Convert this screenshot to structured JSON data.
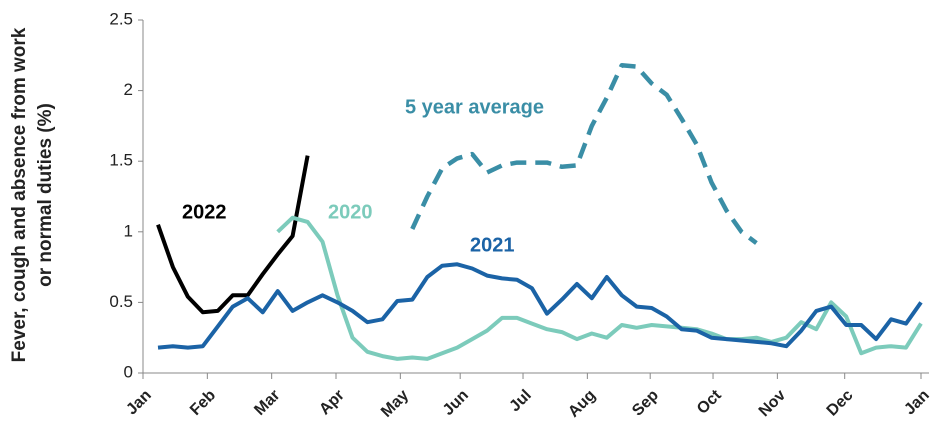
{
  "chart_data": {
    "type": "line",
    "y_label": [
      "Fever, cough and absence from work",
      "or normal duties (%)"
    ],
    "x": [
      1,
      2,
      3,
      4,
      5,
      6,
      7,
      8,
      9,
      10,
      11,
      12,
      13,
      14,
      15,
      16,
      17,
      18,
      19,
      20,
      21,
      22,
      23,
      24,
      25,
      26,
      27,
      28,
      29,
      30,
      31,
      32,
      33,
      34,
      35,
      36,
      37,
      38,
      39,
      40,
      41,
      42,
      43,
      44,
      45,
      46,
      47,
      48,
      49,
      50,
      51,
      52
    ],
    "xlim": [
      0,
      52
    ],
    "xticks": [
      {
        "value": 0,
        "label": "Jan"
      },
      {
        "value": 4.3,
        "label": "Feb"
      },
      {
        "value": 8.6,
        "label": "Mar"
      },
      {
        "value": 12.9,
        "label": "Apr"
      },
      {
        "value": 17.2,
        "label": "May"
      },
      {
        "value": 21.2,
        "label": "Jun"
      },
      {
        "value": 25.4,
        "label": "Jul"
      },
      {
        "value": 29.7,
        "label": "Aug"
      },
      {
        "value": 33.9,
        "label": "Sep"
      },
      {
        "value": 38.1,
        "label": "Oct"
      },
      {
        "value": 42.4,
        "label": "Nov"
      },
      {
        "value": 46.9,
        "label": "Dec"
      },
      {
        "value": 52,
        "label": "Jan"
      }
    ],
    "ylim": [
      0,
      2.5
    ],
    "yticks": [
      0,
      0.5,
      1,
      1.5,
      2,
      2.5
    ],
    "grid": false,
    "series": [
      {
        "name": "2022",
        "color": "#000000",
        "dashed": false,
        "values": [
          1.05,
          0.75,
          0.54,
          0.43,
          0.44,
          0.55,
          0.55,
          0.7,
          0.84,
          0.97,
          1.54,
          null,
          null,
          null,
          null,
          null,
          null,
          null,
          null,
          null,
          null,
          null,
          null,
          null,
          null,
          null,
          null,
          null,
          null,
          null,
          null,
          null,
          null,
          null,
          null,
          null,
          null,
          null,
          null,
          null,
          null,
          null,
          null,
          null,
          null,
          null,
          null,
          null,
          null,
          null,
          null,
          null
        ]
      },
      {
        "name": "2020",
        "color": "#7ccbbb",
        "dashed": false,
        "values": [
          null,
          null,
          null,
          null,
          null,
          null,
          null,
          null,
          1.0,
          1.1,
          1.07,
          0.93,
          0.55,
          0.25,
          0.15,
          0.12,
          0.1,
          0.11,
          0.1,
          0.14,
          0.18,
          0.24,
          0.3,
          0.39,
          0.39,
          0.35,
          0.31,
          0.29,
          0.24,
          0.28,
          0.25,
          0.34,
          0.32,
          0.34,
          0.33,
          0.32,
          0.31,
          0.28,
          0.24,
          0.24,
          0.25,
          0.22,
          0.25,
          0.36,
          0.31,
          0.5,
          0.4,
          0.14,
          0.18,
          0.19,
          0.18,
          0.35
        ]
      },
      {
        "name": "2021",
        "color": "#1b63a6",
        "dashed": false,
        "values": [
          0.18,
          0.19,
          0.18,
          0.19,
          0.33,
          0.47,
          0.53,
          0.43,
          0.58,
          0.44,
          0.5,
          0.55,
          0.5,
          0.44,
          0.36,
          0.38,
          0.51,
          0.52,
          0.68,
          0.76,
          0.77,
          0.74,
          0.69,
          0.67,
          0.66,
          0.6,
          0.42,
          0.52,
          0.63,
          0.53,
          0.68,
          0.55,
          0.47,
          0.46,
          0.4,
          0.31,
          0.3,
          0.25,
          0.24,
          0.23,
          0.22,
          0.21,
          0.19,
          0.3,
          0.44,
          0.47,
          0.34,
          0.34,
          0.24,
          0.38,
          0.35,
          0.5
        ]
      },
      {
        "name": "5 year average",
        "color": "#3a8ea6",
        "dashed": true,
        "values": [
          null,
          null,
          null,
          null,
          null,
          null,
          null,
          null,
          null,
          null,
          null,
          null,
          null,
          null,
          null,
          null,
          null,
          1.02,
          1.25,
          1.45,
          1.52,
          1.55,
          1.42,
          1.47,
          1.49,
          1.49,
          1.49,
          1.46,
          1.47,
          1.75,
          1.95,
          2.18,
          2.17,
          2.05,
          1.97,
          1.8,
          1.62,
          1.35,
          1.15,
          1.0,
          0.92,
          null,
          null,
          null,
          null,
          null,
          null,
          null,
          null,
          null,
          null,
          null
        ]
      }
    ]
  }
}
